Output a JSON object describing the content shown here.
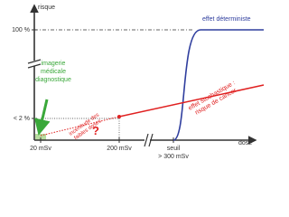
{
  "axes": {
    "y_label": "risque",
    "x_label": "dose",
    "y_ticks": [
      "100 %",
      "< 2 %"
    ],
    "x_ticks": [
      "20 mSv",
      "200 mSv",
      "seuil",
      "> 300 mSv"
    ]
  },
  "annotations": {
    "deterministic": "effet déterministe",
    "stochastic": [
      "effet stochastique :",
      "risque de cancer"
    ],
    "uncertainty": [
      "incertitude des",
      "faibles doses"
    ],
    "question": "?",
    "imaging": [
      "imagerie",
      "médicale",
      "diagnostique"
    ]
  }
}
